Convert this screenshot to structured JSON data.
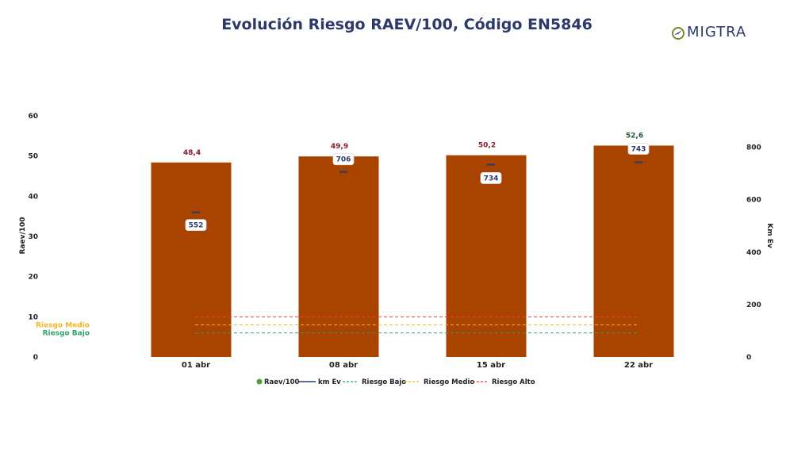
{
  "colors": {
    "bar": "#a84300",
    "km_line": "#2b3a6b",
    "riesgo_bajo": "#2fa56a",
    "riesgo_medio": "#f2b625",
    "riesgo_alto": "#e8433a",
    "value_label_normal": "#8b1a2a",
    "value_label_last": "#1f5a3a",
    "legend_raev_dot": "#4fa03a"
  },
  "logo": {
    "text": "MIGTRA"
  },
  "chart_data": {
    "type": "bar",
    "title": "Evolución Riesgo RAEV/100, Código EN5846",
    "categories": [
      "01 abr",
      "08 abr",
      "15 abr",
      "22 abr"
    ],
    "series": [
      {
        "name": "Raev/100",
        "axis": "left",
        "values": [
          48.4,
          49.9,
          50.2,
          52.6
        ],
        "labels": [
          "48,4",
          "49,9",
          "50,2",
          "52,6"
        ]
      },
      {
        "name": "km Ev",
        "axis": "right",
        "values": [
          552,
          706,
          734,
          743
        ],
        "labels": [
          "552",
          "706",
          "734",
          "743"
        ]
      }
    ],
    "reference_lines": [
      {
        "name": "Riesgo Bajo",
        "value": 6,
        "label": "Riesgo Bajo"
      },
      {
        "name": "Riesgo Medio",
        "value": 8,
        "label": "Riesgo Medio"
      },
      {
        "name": "Riesgo Alto",
        "value": 10
      }
    ],
    "ylabel": "Raev/100",
    "y2label": "Km Ev",
    "ylim": [
      0,
      60
    ],
    "y2lim": [
      0,
      920
    ],
    "yticks": [
      0,
      10,
      20,
      30,
      40,
      50,
      60
    ],
    "y2ticks": [
      0,
      200,
      400,
      600,
      800
    ],
    "legend": [
      "Raev/100",
      "km Ev",
      "Riesgo Bajo",
      "Riesgo Medio",
      "Riesgo Alto"
    ],
    "legend_position": "bottom",
    "grid": false
  }
}
